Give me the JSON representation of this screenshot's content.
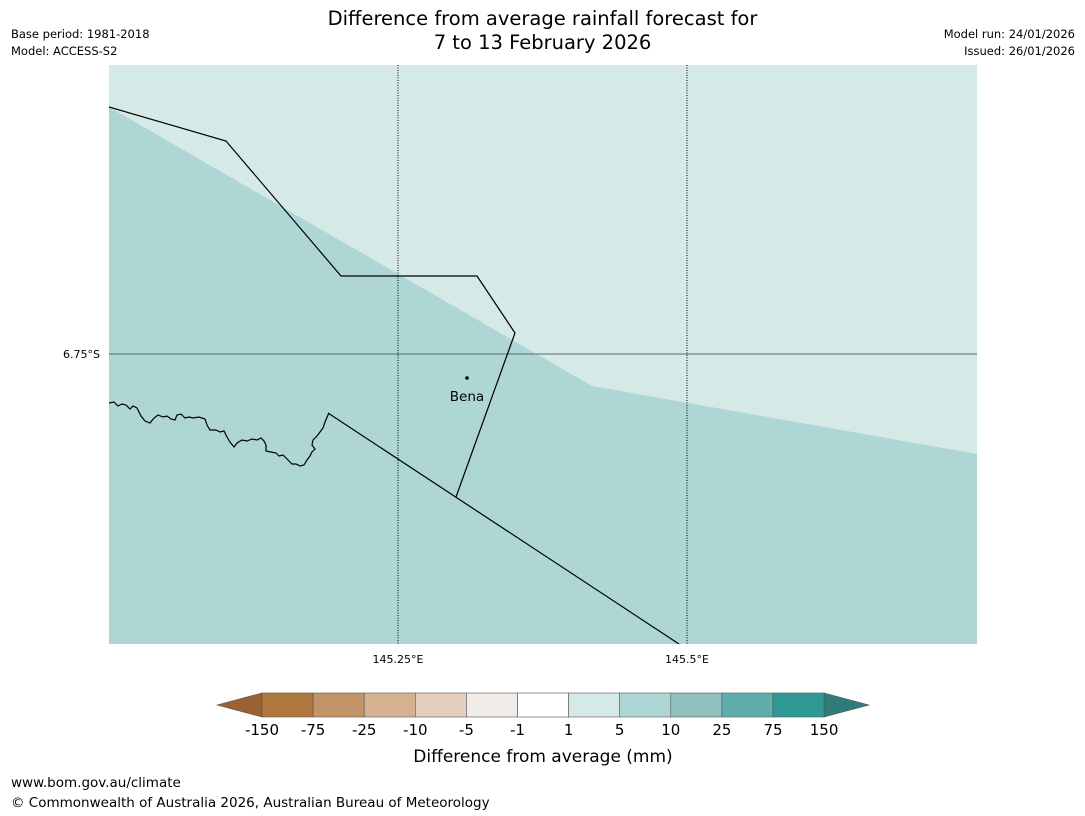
{
  "title": {
    "line1": "Difference from average rainfall forecast for",
    "line2": "7 to 13 February 2026"
  },
  "meta_left": {
    "base_period": "Base period: 1981-2018",
    "model": "Model: ACCESS-S2"
  },
  "meta_right": {
    "model_run": "Model run: 24/01/2026",
    "issued": "Issued: 26/01/2026"
  },
  "map": {
    "colors": {
      "light_band": "#d5e9e7",
      "mid_band": "#aed6d5"
    },
    "axes": {
      "lat_label": "6.75°S",
      "lon_labels": [
        "145.25°E",
        "145.5°E"
      ]
    },
    "place": {
      "name": "Bena"
    }
  },
  "colorbar": {
    "ticks": [
      "-150",
      "-75",
      "-25",
      "-10",
      "-5",
      "-1",
      "1",
      "5",
      "10",
      "25",
      "75",
      "150"
    ],
    "colors": [
      "#9a6131",
      "#b0773f",
      "#c49468",
      "#d4b292",
      "#e5cfbc",
      "#efebe7",
      "#ffffff",
      "#d5e9e7",
      "#aed6d5",
      "#8fc0be",
      "#5eaeac",
      "#2f9996",
      "#2e7b78"
    ],
    "label": "Difference from average (mm)"
  },
  "footer": {
    "url": "www.bom.gov.au/climate",
    "copyright": "© Commonwealth of Australia 2026, Australian Bureau of Meteorology"
  }
}
